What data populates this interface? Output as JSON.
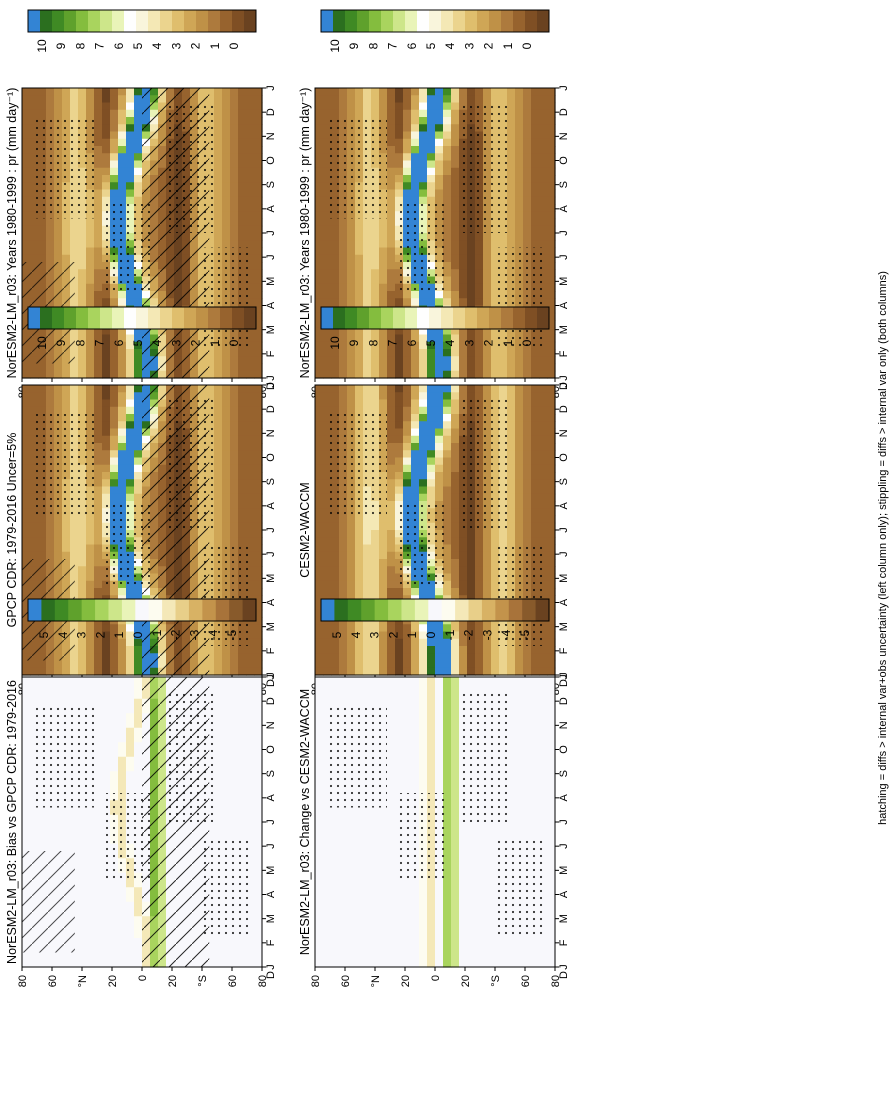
{
  "figure": {
    "footnote": "hatching = diffs > internal var+obs uncertainty (left column only); stippling = diffs > internal var only (both columns)"
  },
  "colors": {
    "abs_palette": [
      "#6a4220",
      "#7f4f24",
      "#97632e",
      "#ad7a3d",
      "#bf9147",
      "#cfa656",
      "#dfbe6d",
      "#ebd48e",
      "#f4e8b5",
      "#f9f5dc",
      "#fefefe",
      "#e9f4b8",
      "#cde68a",
      "#a9d45e",
      "#84bd3e",
      "#5fa12c",
      "#3f8a24",
      "#2b6f1f",
      "#3384d4"
    ],
    "diff_palette": [
      "#6a4220",
      "#885a2b",
      "#a8733a",
      "#c3934b",
      "#d8b264",
      "#e8cf89",
      "#f4e8b8",
      "#fdfcf0",
      "#f8f8fc",
      "#e9f4b8",
      "#cde68a",
      "#a9d45e",
      "#84bd3e",
      "#5fa12c",
      "#3f8a24",
      "#2b6f1f",
      "#3384d4"
    ]
  },
  "chart_data": [
    {
      "type": "heatmap",
      "panel": "left-top",
      "title": "NorESM2-LM_r03: Years 1980-1999 : pr (mm day⁻¹)",
      "x": [
        "J",
        "F",
        "M",
        "A",
        "M",
        "J",
        "J",
        "A",
        "S",
        "O",
        "N",
        "D",
        "J"
      ],
      "y": [
        "80",
        "60",
        "°N",
        "20",
        "0",
        "20",
        "°S",
        "60",
        "80"
      ],
      "y_extra": "D",
      "colorbar": [
        "10",
        "9",
        "8",
        "7",
        "6",
        "5",
        "4",
        "3",
        "2",
        "1",
        "0"
      ],
      "overlay": "hatching+stippling"
    },
    {
      "type": "heatmap",
      "panel": "right-top",
      "title": "NorESM2-LM_r03: Years 1980-1999 : pr (mm day⁻¹)",
      "x": [
        "J",
        "F",
        "M",
        "A",
        "M",
        "J",
        "J",
        "A",
        "S",
        "O",
        "N",
        "D",
        "J"
      ],
      "y": [
        "80",
        "60",
        "°N",
        "20",
        "0",
        "20",
        "°S",
        "60",
        "80"
      ],
      "y_extra": "D",
      "colorbar": [
        "10",
        "9",
        "8",
        "7",
        "6",
        "5",
        "4",
        "3",
        "2",
        "1",
        "0"
      ],
      "overlay": "stippling"
    },
    {
      "type": "heatmap",
      "panel": "left-middle",
      "title": "GPCP CDR: 1979-2016 Uncer=5%",
      "x": [
        "J",
        "F",
        "M",
        "A",
        "M",
        "J",
        "J",
        "A",
        "S",
        "O",
        "N",
        "D",
        "J"
      ],
      "y": [
        "80",
        "60",
        "°N",
        "20",
        "0",
        "20",
        "°S",
        "60",
        "80"
      ],
      "y_extra": "D",
      "colorbar": [
        "10",
        "9",
        "8",
        "7",
        "6",
        "5",
        "4",
        "3",
        "2",
        "1",
        "0"
      ],
      "overlay": "hatching+stippling"
    },
    {
      "type": "heatmap",
      "panel": "right-middle",
      "title": "CESM2-WACCM",
      "x": [
        "J",
        "F",
        "M",
        "A",
        "M",
        "J",
        "J",
        "A",
        "S",
        "O",
        "N",
        "D",
        "J"
      ],
      "y": [
        "80",
        "60",
        "°N",
        "20",
        "0",
        "20",
        "°S",
        "60",
        "80"
      ],
      "y_extra": "D",
      "colorbar": [
        "10",
        "9",
        "8",
        "7",
        "6",
        "5",
        "4",
        "3",
        "2",
        "1",
        "0"
      ],
      "overlay": "stippling"
    },
    {
      "type": "heatmap",
      "panel": "left-bottom",
      "title": "NorESM2-LM_r03: Bias vs GPCP CDR: 1979-2016",
      "x": [
        "J",
        "F",
        "M",
        "A",
        "M",
        "J",
        "J",
        "A",
        "S",
        "O",
        "N",
        "D",
        "J"
      ],
      "y": [
        "80",
        "60",
        "°N",
        "20",
        "0",
        "20",
        "°S",
        "60",
        "80"
      ],
      "y_extra": "D",
      "colorbar": [
        "5",
        "4",
        "3",
        "2",
        "1",
        "0",
        "-1",
        "-2",
        "-3",
        "-4",
        "-5"
      ],
      "overlay": "hatching+stippling"
    },
    {
      "type": "heatmap",
      "panel": "right-bottom",
      "title": "NorESM2-LM_r03: Change vs CESM2-WACCM",
      "x": [
        "J",
        "F",
        "M",
        "A",
        "M",
        "J",
        "J",
        "A",
        "S",
        "O",
        "N",
        "D",
        "J"
      ],
      "y": [
        "80",
        "60",
        "°N",
        "20",
        "0",
        "20",
        "°S",
        "60",
        "80"
      ],
      "y_extra": "D",
      "colorbar": [
        "5",
        "4",
        "3",
        "2",
        "1",
        "0",
        "-1",
        "-2",
        "-3",
        "-4",
        "-5"
      ],
      "overlay": "stippling"
    }
  ]
}
